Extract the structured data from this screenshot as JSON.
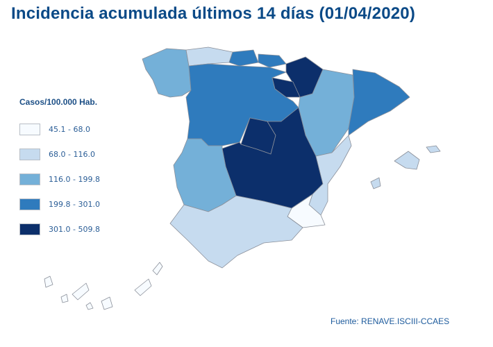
{
  "title": "Incidencia acumulada últimos 14 días (01/04/2020)",
  "legend": {
    "title": "Casos/100.000 Hab.",
    "classes": [
      {
        "label": "45.1 - 68.0",
        "color": "#f7fbff"
      },
      {
        "label": "68.0 - 116.0",
        "color": "#c6dbef"
      },
      {
        "label": "116.0 - 199.8",
        "color": "#74b0d8"
      },
      {
        "label": "199.8 - 301.0",
        "color": "#2f7bbd"
      },
      {
        "label": "301.0 - 509.8",
        "color": "#0c2f6b"
      }
    ]
  },
  "source": "Fuente: RENAVE.ISCIII-CCAES"
}
